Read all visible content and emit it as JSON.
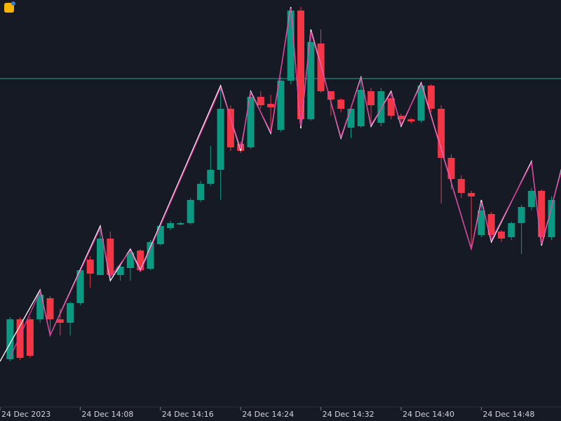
{
  "chart_data": {
    "type": "candlestick",
    "categories": [
      "24 Dec 2023",
      null,
      null,
      null,
      null,
      null,
      null,
      null,
      "24 Dec 14:08",
      null,
      null,
      null,
      null,
      null,
      null,
      null,
      "24 Dec 14:16",
      null,
      null,
      null,
      null,
      null,
      null,
      null,
      "24 Dec 14:24",
      null,
      null,
      null,
      null,
      null,
      null,
      null,
      "24 Dec 14:32",
      null,
      null,
      null,
      null,
      null,
      null,
      null,
      "24 Dec 14:40",
      null,
      null,
      null,
      null,
      null,
      null,
      null,
      "24 Dec 14:48",
      null,
      null,
      null,
      null,
      null,
      null,
      null
    ],
    "open": [
      null,
      88,
      145,
      145,
      145,
      175,
      145,
      140,
      168,
      230,
      208,
      260,
      208,
      218,
      243,
      217,
      252,
      275,
      280,
      282,
      315,
      338,
      358,
      445,
      395,
      390,
      462,
      452,
      415,
      485,
      585,
      430,
      538,
      470,
      458,
      418,
      420,
      470,
      425,
      460,
      435,
      430,
      428,
      478,
      445,
      375,
      345,
      325,
      265,
      295,
      270,
      262,
      282,
      305,
      328,
      262
    ],
    "high": [
      null,
      148,
      148,
      148,
      187,
      178,
      160,
      170,
      218,
      235,
      278,
      270,
      222,
      245,
      245,
      258,
      282,
      285,
      284,
      318,
      342,
      392,
      478,
      450,
      398,
      470,
      470,
      465,
      490,
      590,
      590,
      558,
      558,
      470,
      460,
      448,
      490,
      475,
      475,
      465,
      438,
      432,
      482,
      480,
      450,
      380,
      350,
      328,
      315,
      298,
      272,
      284,
      308,
      332,
      330,
      320
    ],
    "low": [
      null,
      85,
      87,
      90,
      140,
      122,
      122,
      122,
      165,
      190,
      208,
      205,
      200,
      200,
      213,
      215,
      250,
      272,
      279,
      280,
      312,
      335,
      315,
      385,
      382,
      388,
      445,
      410,
      412,
      480,
      417,
      428,
      468,
      435,
      440,
      403,
      418,
      420,
      420,
      430,
      420,
      424,
      425,
      440,
      310,
      330,
      318,
      245,
      262,
      262,
      255,
      258,
      238,
      300,
      255,
      258
    ],
    "close": [
      null,
      145,
      90,
      93,
      180,
      145,
      140,
      168,
      215,
      210,
      260,
      208,
      220,
      240,
      215,
      255,
      278,
      282,
      282,
      315,
      338,
      358,
      445,
      390,
      385,
      462,
      450,
      447,
      485,
      585,
      430,
      540,
      470,
      458,
      445,
      445,
      472,
      450,
      470,
      435,
      430,
      427,
      478,
      445,
      375,
      345,
      325,
      320,
      300,
      265,
      260,
      282,
      305,
      328,
      262,
      315
    ],
    "up_color": "#0b9981",
    "down_color": "#f23645",
    "lines": [
      {
        "color": "#ffffff",
        "x": [
          0,
          4,
          5,
          10,
          11,
          13,
          14,
          22,
          24,
          25,
          27,
          29,
          30,
          31,
          34,
          36,
          37,
          39,
          40,
          42,
          47,
          48,
          49,
          53,
          54,
          56
        ],
        "values": [
          85,
          187,
          122,
          278,
          200,
          245,
          215,
          478,
          385,
          470,
          410,
          590,
          417,
          558,
          403,
          490,
          420,
          470,
          420,
          482,
          245,
          315,
          255,
          370,
          250,
          360
        ]
      },
      {
        "color": "#e0349a",
        "x": [
          1,
          4,
          5,
          10,
          11,
          13,
          14,
          22,
          24,
          25,
          27,
          29,
          30,
          31,
          34,
          36,
          37,
          39,
          40,
          42,
          47,
          48,
          49,
          53,
          54,
          56
        ],
        "values": [
          90,
          185,
          122,
          275,
          205,
          243,
          213,
          475,
          388,
          468,
          412,
          588,
          420,
          555,
          405,
          488,
          422,
          468,
          422,
          480,
          245,
          312,
          258,
          368,
          252,
          358
        ]
      }
    ],
    "hline": 488,
    "hline_color": "#2a9d8f",
    "ylim": [
      20,
      600
    ],
    "grid": false
  }
}
